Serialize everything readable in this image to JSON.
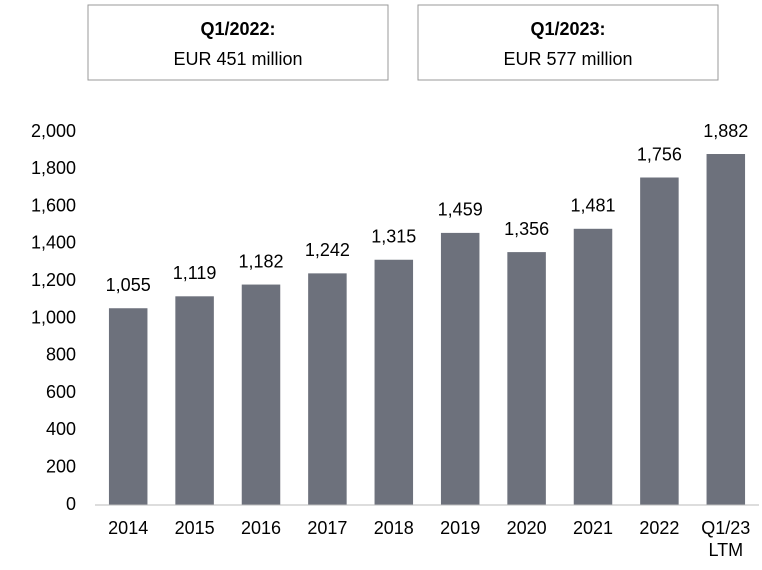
{
  "chart_data": {
    "type": "bar",
    "annotations": [
      {
        "title": "Q1/2022:",
        "text": "EUR 451 million"
      },
      {
        "title": "Q1/2023:",
        "text": "EUR 577 million"
      }
    ],
    "categories": [
      "2014",
      "2015",
      "2016",
      "2017",
      "2018",
      "2019",
      "2020",
      "2021",
      "2022",
      "Q1/23\nLTM"
    ],
    "values": [
      1055,
      1119,
      1182,
      1242,
      1315,
      1459,
      1356,
      1481,
      1756,
      1882
    ],
    "value_labels": [
      "1,055",
      "1,119",
      "1,182",
      "1,242",
      "1,315",
      "1,459",
      "1,356",
      "1,481",
      "1,756",
      "1,882"
    ],
    "color": "#6d717c",
    "ylim": [
      0,
      2000
    ],
    "yticks": [
      0,
      200,
      400,
      600,
      800,
      {
        "value": 1000,
        "label": "1,000"
      },
      {
        "value": 1200,
        "label": "1,200"
      },
      {
        "value": 1400,
        "label": "1,400"
      },
      {
        "value": 1600,
        "label": "1,600"
      },
      {
        "value": 1800,
        "label": "1,800"
      },
      {
        "value": 2000,
        "label": "2,000"
      }
    ],
    "grid": false
  }
}
